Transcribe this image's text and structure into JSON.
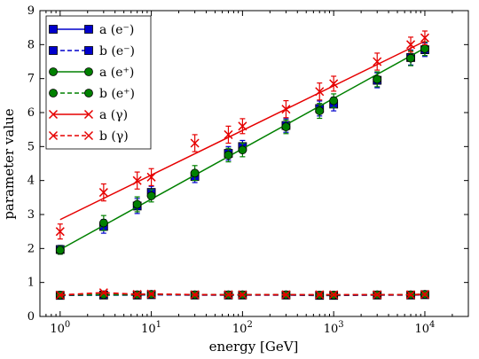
{
  "chart_data": {
    "type": "line",
    "xlabel": "energy [GeV]",
    "ylabel": "parameter value",
    "xscale": "log",
    "xlim": [
      0.6,
      30000
    ],
    "ylim": [
      0,
      9
    ],
    "xticks": [
      {
        "value": 1,
        "base": "10",
        "exp": "0"
      },
      {
        "value": 10,
        "base": "10",
        "exp": "1"
      },
      {
        "value": 100,
        "base": "10",
        "exp": "2"
      },
      {
        "value": 1000,
        "base": "10",
        "exp": "3"
      },
      {
        "value": 10000,
        "base": "10",
        "exp": "4"
      }
    ],
    "yticks": [
      0,
      1,
      2,
      3,
      4,
      5,
      6,
      7,
      8,
      9
    ],
    "legend": "top-left",
    "grid": false,
    "x": [
      1,
      3,
      7,
      10,
      30,
      70,
      100,
      300,
      700,
      1000,
      3000,
      7000,
      10000
    ],
    "series": [
      {
        "name": "a (e⁻)",
        "color": "#0000cc",
        "marker": "square",
        "line": "solid",
        "values": [
          1.97,
          2.65,
          3.25,
          3.65,
          4.12,
          4.8,
          5.0,
          5.62,
          6.12,
          6.25,
          6.95,
          7.62,
          7.85
        ],
        "errors": [
          0.12,
          0.2,
          0.22,
          0.18,
          0.18,
          0.2,
          0.18,
          0.2,
          0.22,
          0.2,
          0.22,
          0.22,
          0.2
        ]
      },
      {
        "name": "b (e⁻)",
        "color": "#0000cc",
        "marker": "square",
        "line": "dashed",
        "values": [
          0.62,
          0.63,
          0.63,
          0.64,
          0.63,
          0.63,
          0.63,
          0.63,
          0.62,
          0.62,
          0.63,
          0.63,
          0.64
        ],
        "errors": [
          0.03,
          0.03,
          0.03,
          0.03,
          0.03,
          0.03,
          0.03,
          0.03,
          0.03,
          0.03,
          0.03,
          0.03,
          0.03
        ]
      },
      {
        "name": "a (e⁺)",
        "color": "#008000",
        "marker": "circle",
        "line": "solid",
        "values": [
          1.95,
          2.75,
          3.3,
          3.55,
          4.22,
          4.75,
          4.9,
          5.58,
          6.05,
          6.35,
          6.98,
          7.6,
          7.88
        ],
        "errors": [
          0.12,
          0.22,
          0.22,
          0.18,
          0.22,
          0.2,
          0.2,
          0.2,
          0.22,
          0.2,
          0.22,
          0.22,
          0.2
        ],
        "fit": [
          1.97,
          7.9
        ]
      },
      {
        "name": "b (e⁺)",
        "color": "#008000",
        "marker": "circle",
        "line": "dashed",
        "values": [
          0.63,
          0.64,
          0.64,
          0.65,
          0.64,
          0.64,
          0.64,
          0.64,
          0.63,
          0.63,
          0.64,
          0.64,
          0.65
        ],
        "errors": [
          0.03,
          0.03,
          0.03,
          0.03,
          0.03,
          0.03,
          0.03,
          0.03,
          0.03,
          0.03,
          0.03,
          0.03,
          0.03
        ]
      },
      {
        "name": "a (γ)",
        "color": "#e60000",
        "marker": "x",
        "line": "solid",
        "values": [
          2.5,
          3.65,
          4.0,
          4.1,
          5.1,
          5.35,
          5.6,
          6.1,
          6.62,
          6.85,
          7.5,
          8.0,
          8.2
        ],
        "errors": [
          0.22,
          0.25,
          0.25,
          0.25,
          0.25,
          0.25,
          0.22,
          0.25,
          0.25,
          0.22,
          0.25,
          0.22,
          0.2
        ],
        "fit": [
          2.85,
          8.1
        ]
      },
      {
        "name": "b (γ)",
        "color": "#e60000",
        "marker": "x",
        "line": "dashed",
        "values": [
          0.63,
          0.7,
          0.65,
          0.66,
          0.64,
          0.64,
          0.64,
          0.64,
          0.64,
          0.64,
          0.64,
          0.64,
          0.65
        ],
        "errors": [
          0.03,
          0.03,
          0.03,
          0.03,
          0.03,
          0.03,
          0.03,
          0.03,
          0.03,
          0.03,
          0.03,
          0.03,
          0.03
        ]
      }
    ]
  }
}
